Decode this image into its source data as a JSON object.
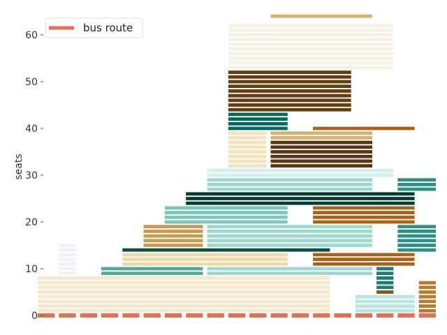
{
  "chart_data": {
    "type": "bar",
    "ylabel": "seats",
    "ylim": [
      -1,
      65
    ],
    "xlim": [
      0,
      19
    ],
    "yticks": [
      0,
      10,
      20,
      30,
      40,
      50,
      60
    ],
    "legend": {
      "position": "top-left",
      "entries": [
        {
          "label": "bus route",
          "color": "#e76f51"
        }
      ]
    },
    "baseline": {
      "name": "bus route",
      "color": "#e76f51",
      "y": 0,
      "x_range": [
        0.1,
        18.9
      ]
    },
    "blocks": [
      {
        "x0": 0.1,
        "x1": 13.9,
        "y0": 1,
        "y1": 8,
        "color": "#f6e8c9"
      },
      {
        "x0": 1.1,
        "x1": 1.9,
        "y0": 9,
        "y1": 15,
        "color": "#edf3f7"
      },
      {
        "x0": 3.1,
        "x1": 7.9,
        "y0": 9,
        "y1": 10,
        "color": "#55a89e"
      },
      {
        "x0": 4.1,
        "x1": 11.9,
        "y0": 11,
        "y1": 13,
        "color": "#f0d9a8"
      },
      {
        "x0": 4.1,
        "x1": 13.9,
        "y0": 14,
        "y1": 14,
        "color": "#0f4f45"
      },
      {
        "x0": 5.1,
        "x1": 7.9,
        "y0": 15,
        "y1": 19,
        "color": "#c9994f"
      },
      {
        "x0": 6.1,
        "x1": 11.9,
        "y0": 20,
        "y1": 23,
        "color": "#7ac6bb"
      },
      {
        "x0": 7.1,
        "x1": 17.9,
        "y0": 24,
        "y1": 26,
        "color": "#003d33"
      },
      {
        "x0": 8.1,
        "x1": 15.9,
        "y0": 9,
        "y1": 10,
        "color": "#9ed8cd"
      },
      {
        "x0": 8.1,
        "x1": 15.9,
        "y0": 15,
        "y1": 19,
        "color": "#9ed8cd"
      },
      {
        "x0": 8.1,
        "x1": 15.9,
        "y0": 27,
        "y1": 29,
        "color": "#9ed8cd"
      },
      {
        "x0": 8.1,
        "x1": 16.9,
        "y0": 30,
        "y1": 31,
        "color": "#d2f0ea"
      },
      {
        "x0": 9.1,
        "x1": 10.9,
        "y0": 32,
        "y1": 39,
        "color": "#f4e2b8"
      },
      {
        "x0": 9.1,
        "x1": 11.9,
        "y0": 40,
        "y1": 43,
        "color": "#00695f"
      },
      {
        "x0": 9.1,
        "x1": 14.9,
        "y0": 44,
        "y1": 52,
        "color": "#653a0c"
      },
      {
        "x0": 9.1,
        "x1": 16.9,
        "y0": 53,
        "y1": 62,
        "color": "#f5f2e6"
      },
      {
        "x0": 11.1,
        "x1": 15.9,
        "y0": 32,
        "y1": 37,
        "color": "#5a3410"
      },
      {
        "x0": 11.1,
        "x1": 15.9,
        "y0": 38,
        "y1": 39,
        "color": "#d9b06f"
      },
      {
        "x0": 11.1,
        "x1": 15.9,
        "y0": 64,
        "y1": 64,
        "color": "#d9b06f"
      },
      {
        "x0": 13.1,
        "x1": 17.9,
        "y0": 40,
        "y1": 40,
        "color": "#a86219"
      },
      {
        "x0": 13.1,
        "x1": 17.9,
        "y0": 11,
        "y1": 13,
        "color": "#a86219"
      },
      {
        "x0": 13.1,
        "x1": 17.9,
        "y0": 20,
        "y1": 23,
        "color": "#a86219"
      },
      {
        "x0": 15.1,
        "x1": 17.9,
        "y0": 1,
        "y1": 4,
        "color": "#b8e6df"
      },
      {
        "x0": 16.1,
        "x1": 16.9,
        "y0": 5,
        "y1": 5,
        "color": "#8a5314"
      },
      {
        "x0": 16.1,
        "x1": 16.9,
        "y0": 6,
        "y1": 10,
        "color": "#1e7a72"
      },
      {
        "x0": 17.1,
        "x1": 18.9,
        "y0": 14,
        "y1": 19,
        "color": "#2e8f87"
      },
      {
        "x0": 17.1,
        "x1": 18.9,
        "y0": 27,
        "y1": 29,
        "color": "#2e8f87"
      },
      {
        "x0": 18.1,
        "x1": 18.9,
        "y0": 1,
        "y1": 7,
        "color": "#b87a2e"
      }
    ]
  }
}
